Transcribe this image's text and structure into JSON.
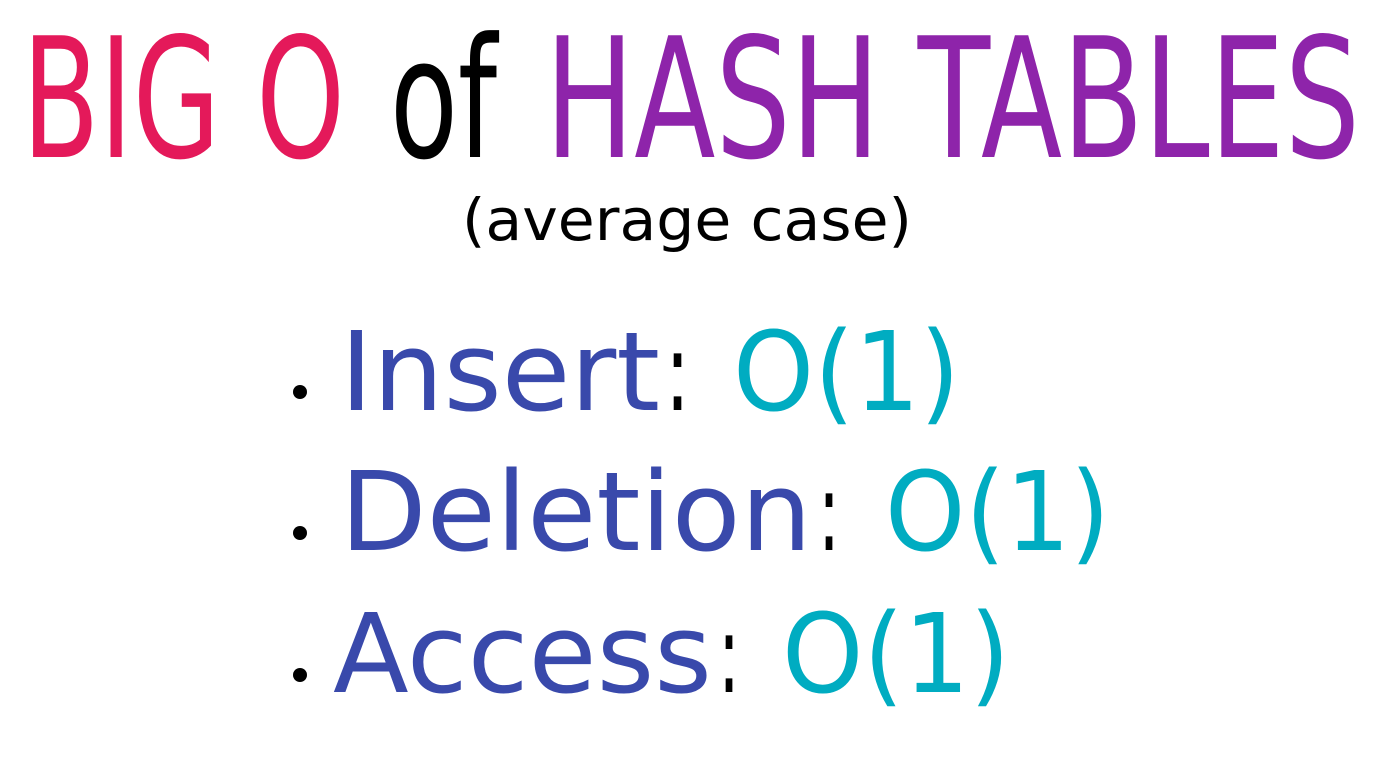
{
  "title": {
    "part1": "BIG O",
    "part2": "of",
    "part3": "HASH TABLES"
  },
  "subtitle": "(average case)",
  "items": [
    {
      "operation": "Insert",
      "separator": ":",
      "complexity": "O(1)"
    },
    {
      "operation": "Deletion",
      "separator": ":",
      "complexity": "O(1)"
    },
    {
      "operation": "Access",
      "separator": ":",
      "complexity": "O(1)"
    }
  ]
}
